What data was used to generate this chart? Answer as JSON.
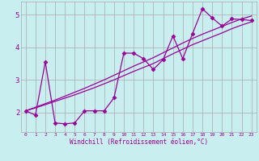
{
  "background_color": "#c8eef0",
  "line_color": "#990099",
  "grid_color": "#aaaaaa",
  "xlabel": "Windchill (Refroidissement éolien,°C)",
  "x_ticks": [
    0,
    1,
    2,
    3,
    4,
    5,
    6,
    7,
    8,
    9,
    10,
    11,
    12,
    13,
    14,
    15,
    16,
    17,
    18,
    19,
    20,
    21,
    22,
    23
  ],
  "y_ticks": [
    2,
    3,
    4,
    5
  ],
  "xlim": [
    -0.5,
    23.5
  ],
  "ylim": [
    1.4,
    5.4
  ],
  "jagged_x": [
    0,
    1,
    2,
    3,
    4,
    5,
    6,
    7,
    8,
    9,
    10,
    11,
    12,
    13,
    14,
    15,
    16,
    17,
    18,
    19,
    20,
    21,
    22,
    23
  ],
  "jagged_y": [
    2.05,
    1.92,
    3.55,
    1.68,
    1.65,
    1.68,
    2.05,
    2.05,
    2.05,
    2.45,
    3.82,
    3.82,
    3.65,
    3.32,
    3.62,
    4.35,
    3.65,
    4.42,
    5.18,
    4.9,
    4.65,
    4.87,
    4.85,
    4.82
  ],
  "smooth1_x": [
    0,
    1,
    2,
    3,
    4,
    5,
    6,
    7,
    8,
    9,
    10,
    11,
    12,
    13,
    14,
    15,
    16,
    17,
    18,
    19,
    20,
    21,
    22,
    23
  ],
  "smooth1_y": [
    2.05,
    2.14,
    2.24,
    2.34,
    2.44,
    2.54,
    2.65,
    2.76,
    2.88,
    3.0,
    3.13,
    3.26,
    3.38,
    3.5,
    3.65,
    3.8,
    3.94,
    4.08,
    4.2,
    4.32,
    4.44,
    4.57,
    4.68,
    4.78
  ],
  "smooth2_x": [
    0,
    1,
    2,
    3,
    4,
    5,
    6,
    7,
    8,
    9,
    10,
    11,
    12,
    13,
    14,
    15,
    16,
    17,
    18,
    19,
    20,
    21,
    22,
    23
  ],
  "smooth2_y": [
    2.05,
    2.16,
    2.27,
    2.38,
    2.5,
    2.62,
    2.74,
    2.87,
    3.0,
    3.14,
    3.28,
    3.42,
    3.55,
    3.68,
    3.83,
    3.98,
    4.13,
    4.27,
    4.4,
    4.52,
    4.64,
    4.76,
    4.87,
    4.96
  ]
}
